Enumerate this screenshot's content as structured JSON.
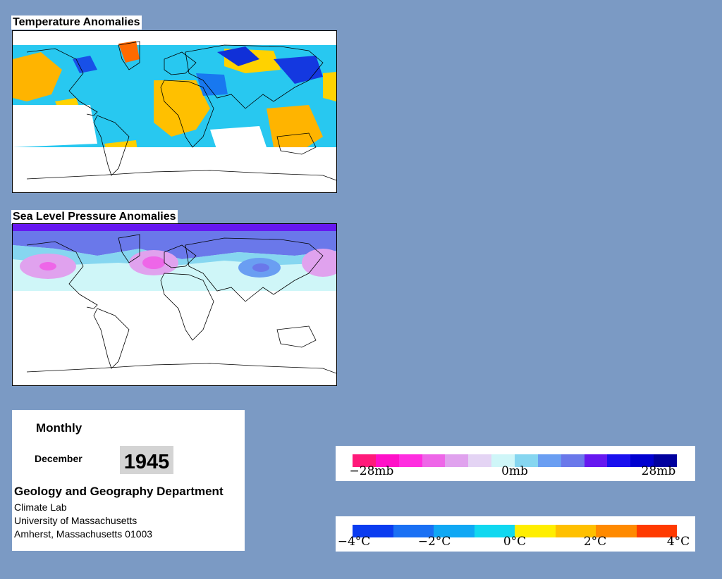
{
  "temperature_panel": {
    "title": "Temperature Anomalies"
  },
  "pressure_panel": {
    "title": "Sea Level Pressure Anomalies"
  },
  "info": {
    "period": "Monthly",
    "month": "December",
    "year": "1945",
    "department": "Geology and Geography Department",
    "lab": "Climate Lab",
    "university": "University of Massachusetts",
    "address": "Amherst, Massachusetts 01003"
  },
  "pressure_legend": {
    "labels": [
      "−28mb",
      "0mb",
      "28mb"
    ],
    "colors": [
      "#ff1a7a",
      "#ff10c8",
      "#ff2ee0",
      "#ee66e8",
      "#e0a2ee",
      "#e4d4f4",
      "#cff6f8",
      "#86d6f0",
      "#6a9ef2",
      "#6a78ea",
      "#6618f0",
      "#1a10ee",
      "#0000d0",
      "#00009e"
    ]
  },
  "temperature_legend": {
    "labels": [
      "−4°C",
      "−2°C",
      "0°C",
      "2°C",
      "4°C"
    ],
    "colors": [
      "#0b3cf0",
      "#1a70f4",
      "#10a8f4",
      "#10d8f0",
      "#ffee00",
      "#ffc000",
      "#ff8a00",
      "#ff3a00"
    ]
  },
  "colors": {
    "background": "#7b9ac4",
    "panel": "#ffffff"
  }
}
